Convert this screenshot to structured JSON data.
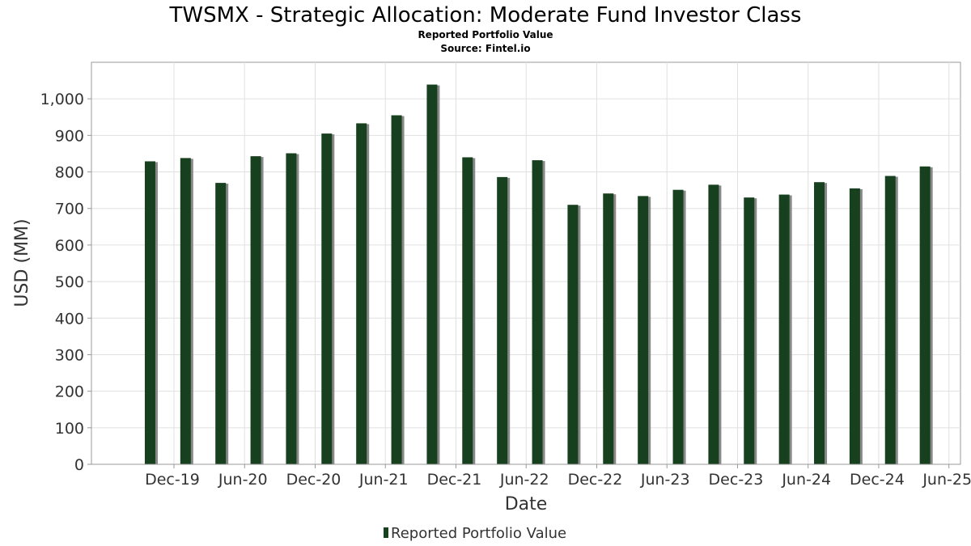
{
  "chart_data": {
    "type": "bar",
    "title": "TWSMX - Strategic Allocation: Moderate Fund Investor Class",
    "subtitles": [
      "Reported Portfolio Value",
      "Source: Fintel.io"
    ],
    "xlabel": "Date",
    "ylabel": "USD (MM)",
    "ylim": [
      0,
      1100
    ],
    "yticks": [
      0,
      100,
      200,
      300,
      400,
      500,
      600,
      700,
      800,
      900,
      1000
    ],
    "ytick_labels": [
      "0",
      "100",
      "200",
      "300",
      "400",
      "500",
      "600",
      "700",
      "800",
      "900",
      "1,000"
    ],
    "xlim": [
      "2019-05-01",
      "2025-07-01"
    ],
    "xticks": [
      {
        "date": "2019-12-01",
        "label": "Dec-19"
      },
      {
        "date": "2020-06-01",
        "label": "Jun-20"
      },
      {
        "date": "2020-12-01",
        "label": "Dec-20"
      },
      {
        "date": "2021-06-01",
        "label": "Jun-21"
      },
      {
        "date": "2021-12-01",
        "label": "Dec-21"
      },
      {
        "date": "2022-06-01",
        "label": "Jun-22"
      },
      {
        "date": "2022-12-01",
        "label": "Dec-22"
      },
      {
        "date": "2023-06-01",
        "label": "Jun-23"
      },
      {
        "date": "2023-12-01",
        "label": "Dec-23"
      },
      {
        "date": "2024-06-01",
        "label": "Jun-24"
      },
      {
        "date": "2024-12-01",
        "label": "Dec-24"
      },
      {
        "date": "2025-06-01",
        "label": "Jun-25"
      }
    ],
    "grid": true,
    "legend": "bottom-center",
    "series": [
      {
        "name": "Reported Portfolio Value",
        "color": "#17401f",
        "shadow_color": "#888888",
        "points": [
          {
            "x": "2019-09-30",
            "y": 829
          },
          {
            "x": "2019-12-31",
            "y": 838
          },
          {
            "x": "2020-03-31",
            "y": 770
          },
          {
            "x": "2020-06-30",
            "y": 843
          },
          {
            "x": "2020-09-30",
            "y": 851
          },
          {
            "x": "2020-12-31",
            "y": 905
          },
          {
            "x": "2021-03-31",
            "y": 933
          },
          {
            "x": "2021-06-30",
            "y": 955
          },
          {
            "x": "2021-09-30",
            "y": 1039
          },
          {
            "x": "2021-12-31",
            "y": 840
          },
          {
            "x": "2022-03-31",
            "y": 786
          },
          {
            "x": "2022-06-30",
            "y": 832
          },
          {
            "x": "2022-09-30",
            "y": 710
          },
          {
            "x": "2022-12-31",
            "y": 741
          },
          {
            "x": "2023-03-31",
            "y": 734
          },
          {
            "x": "2023-06-30",
            "y": 751
          },
          {
            "x": "2023-09-30",
            "y": 765
          },
          {
            "x": "2023-12-31",
            "y": 730
          },
          {
            "x": "2024-03-31",
            "y": 738
          },
          {
            "x": "2024-06-30",
            "y": 772
          },
          {
            "x": "2024-09-30",
            "y": 755
          },
          {
            "x": "2024-12-31",
            "y": 789
          },
          {
            "x": "2025-03-31",
            "y": 815
          }
        ]
      }
    ]
  }
}
